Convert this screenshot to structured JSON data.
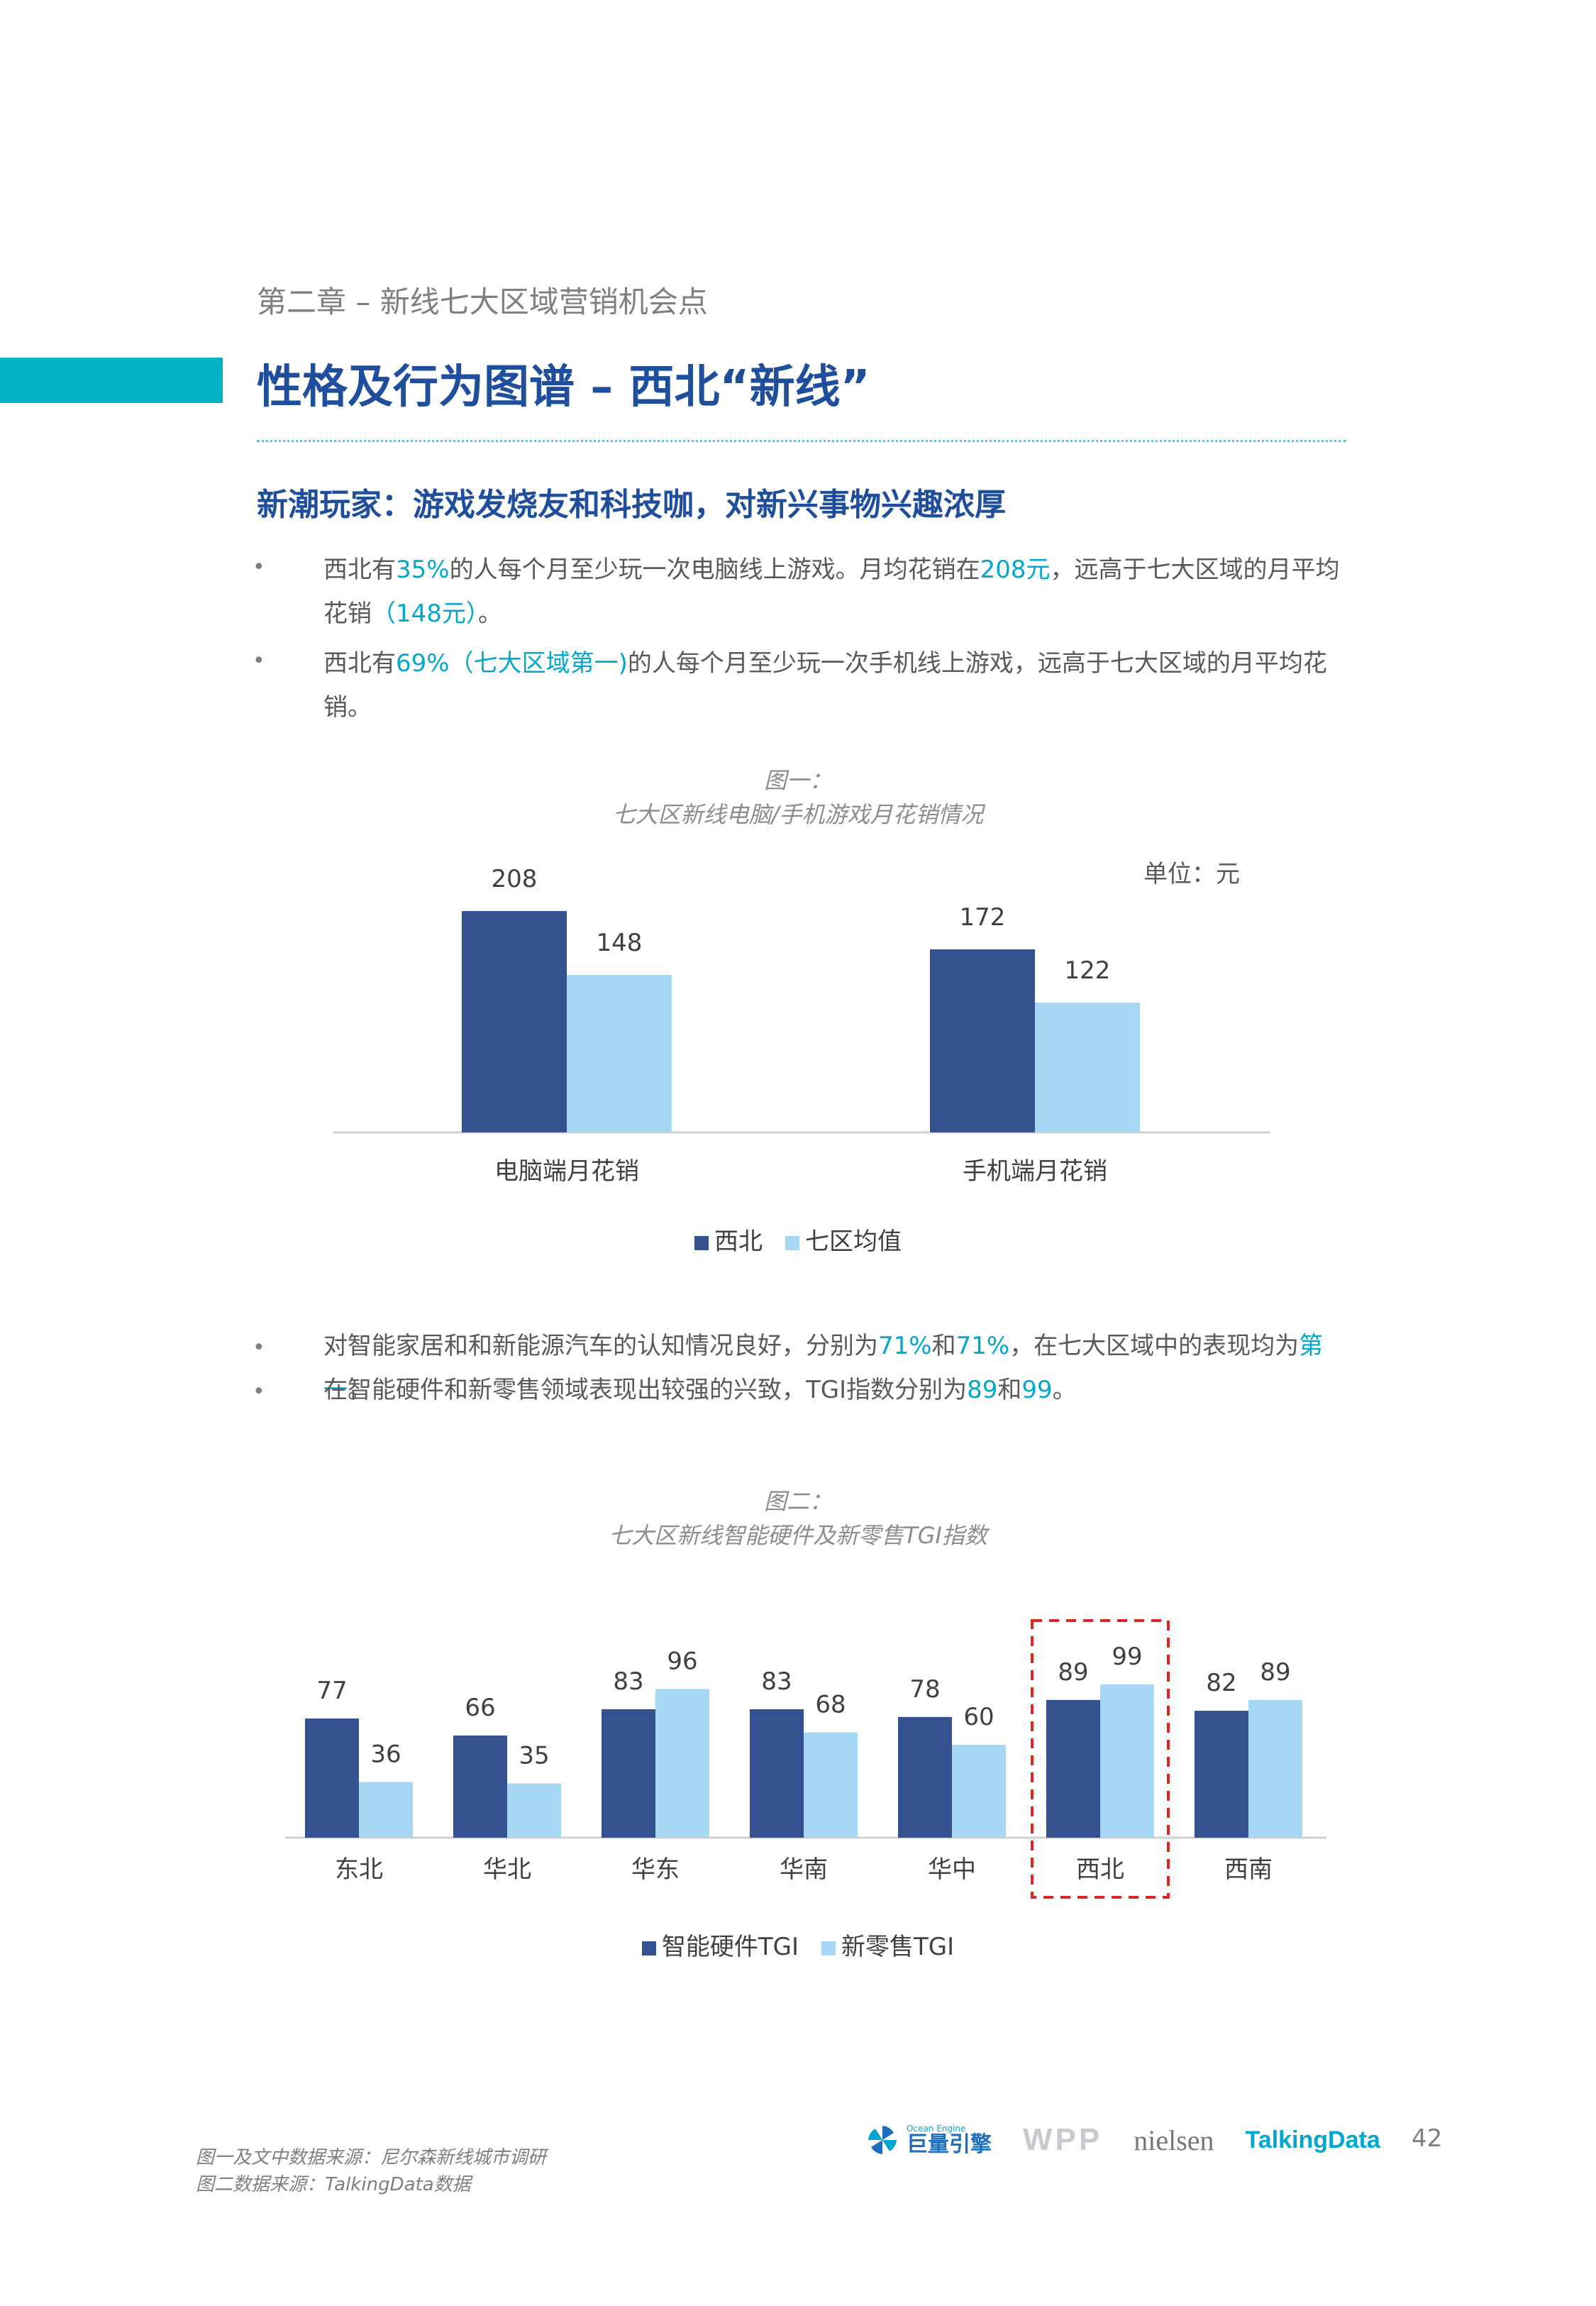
{
  "header": {
    "chapter": "第二章 – 新线七大区域营销机会点",
    "title": "性格及行为图谱 – 西北“新线”",
    "subtitle": "新潮玩家：游戏发烧友和科技咖，对新兴事物兴趣浓厚"
  },
  "bullets_1": [
    {
      "bullet": "•",
      "segments": [
        {
          "text": "西北有",
          "hl": false
        },
        {
          "text": "35%",
          "hl": true
        },
        {
          "text": "的人每个月至少玩一次电脑线上游戏。月均花销在",
          "hl": false
        },
        {
          "text": "208元",
          "hl": true
        },
        {
          "text": "，远高于七大区域的月平均花销",
          "hl": false
        },
        {
          "text": "（148元）",
          "hl": true
        },
        {
          "text": "。",
          "hl": false
        }
      ]
    },
    {
      "bullet": "•",
      "segments": [
        {
          "text": "西北有",
          "hl": false
        },
        {
          "text": "69%（七大区域第一)",
          "hl": true
        },
        {
          "text": "的人每个月至少玩一次手机线上游戏，远高于七大区域的月平均花销。",
          "hl": false
        }
      ]
    }
  ],
  "figure1": {
    "caption_line1": "图一：",
    "caption_line2": "七大区新线电脑/手机游戏月花销情况",
    "unit": "单位：元"
  },
  "chart_data": [
    {
      "type": "bar",
      "categories": [
        "电脑端月花销",
        "手机端月花销"
      ],
      "series": [
        {
          "name": "西北",
          "values": [
            208,
            172
          ],
          "color": "#34528f"
        },
        {
          "name": "七区均值",
          "values": [
            148,
            122
          ],
          "color": "#a6d8f4"
        }
      ],
      "ylim": [
        0,
        208
      ]
    },
    {
      "type": "bar",
      "categories": [
        "东北",
        "华北",
        "华东",
        "华南",
        "华中",
        "西北",
        "西南"
      ],
      "series": [
        {
          "name": "智能硬件TGI",
          "values": [
            77,
            66,
            83,
            83,
            78,
            89,
            82
          ],
          "color": "#34528f"
        },
        {
          "name": "新零售TGI",
          "values": [
            36,
            35,
            96,
            68,
            60,
            99,
            89
          ],
          "color": "#a6d8f4"
        }
      ],
      "highlight_category": "西北",
      "highlight_color": "#e02424",
      "ylim": [
        0,
        99
      ]
    }
  ],
  "bullets_2": [
    {
      "bullet": "•",
      "segments": [
        {
          "text": "对智能家居和和新能源汽车的认知情况良好，分别为",
          "hl": false
        },
        {
          "text": "71%",
          "hl": true
        },
        {
          "text": "和",
          "hl": false
        },
        {
          "text": "71%",
          "hl": true
        },
        {
          "text": "，在七大区域中的表现均为",
          "hl": false
        },
        {
          "text": "第一",
          "hl": true
        },
        {
          "text": "。",
          "hl": false
        }
      ]
    },
    {
      "bullet": "•",
      "segments": [
        {
          "text": "在智能硬件和新零售领域表现出较强的兴致，TGI指数分别为",
          "hl": false
        },
        {
          "text": "89",
          "hl": true
        },
        {
          "text": "和",
          "hl": false
        },
        {
          "text": "99",
          "hl": true
        },
        {
          "text": "。",
          "hl": false
        }
      ]
    }
  ],
  "figure2": {
    "caption_line1": "图二：",
    "caption_line2": "七大区新线智能硬件及新零售TGI指数"
  },
  "footer": {
    "source1": "图一及文中数据来源：尼尔森新线城市调研",
    "source2": "图二数据来源：TalkingData数据",
    "logo_oceanengine_small": "Ocean Engine",
    "logo_oceanengine_cn": "巨量引擎",
    "logo_wpp": "WPP",
    "logo_nielsen": "nielsen",
    "logo_talkingdata": "TalkingData",
    "page_number": "42"
  }
}
